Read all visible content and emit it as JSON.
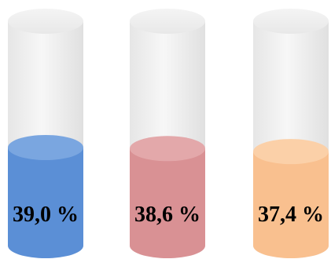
{
  "chart_data": {
    "type": "bar",
    "style": "3d-cylinder",
    "categories": [
      "",
      "",
      ""
    ],
    "values": [
      39.0,
      38.6,
      37.4
    ],
    "value_labels": [
      "39,0 %",
      "38,6 %",
      "37,4 %"
    ],
    "value_unit": "%",
    "colors": [
      "#5b8fd6",
      "#d99194",
      "#f9c08f"
    ],
    "top_colors": [
      "#7aa6e0",
      "#e3a8aa",
      "#fbd0a8"
    ],
    "track_color": "#ececec",
    "title": "",
    "xlabel": "",
    "ylabel": "",
    "grid": false,
    "legend": "none"
  }
}
